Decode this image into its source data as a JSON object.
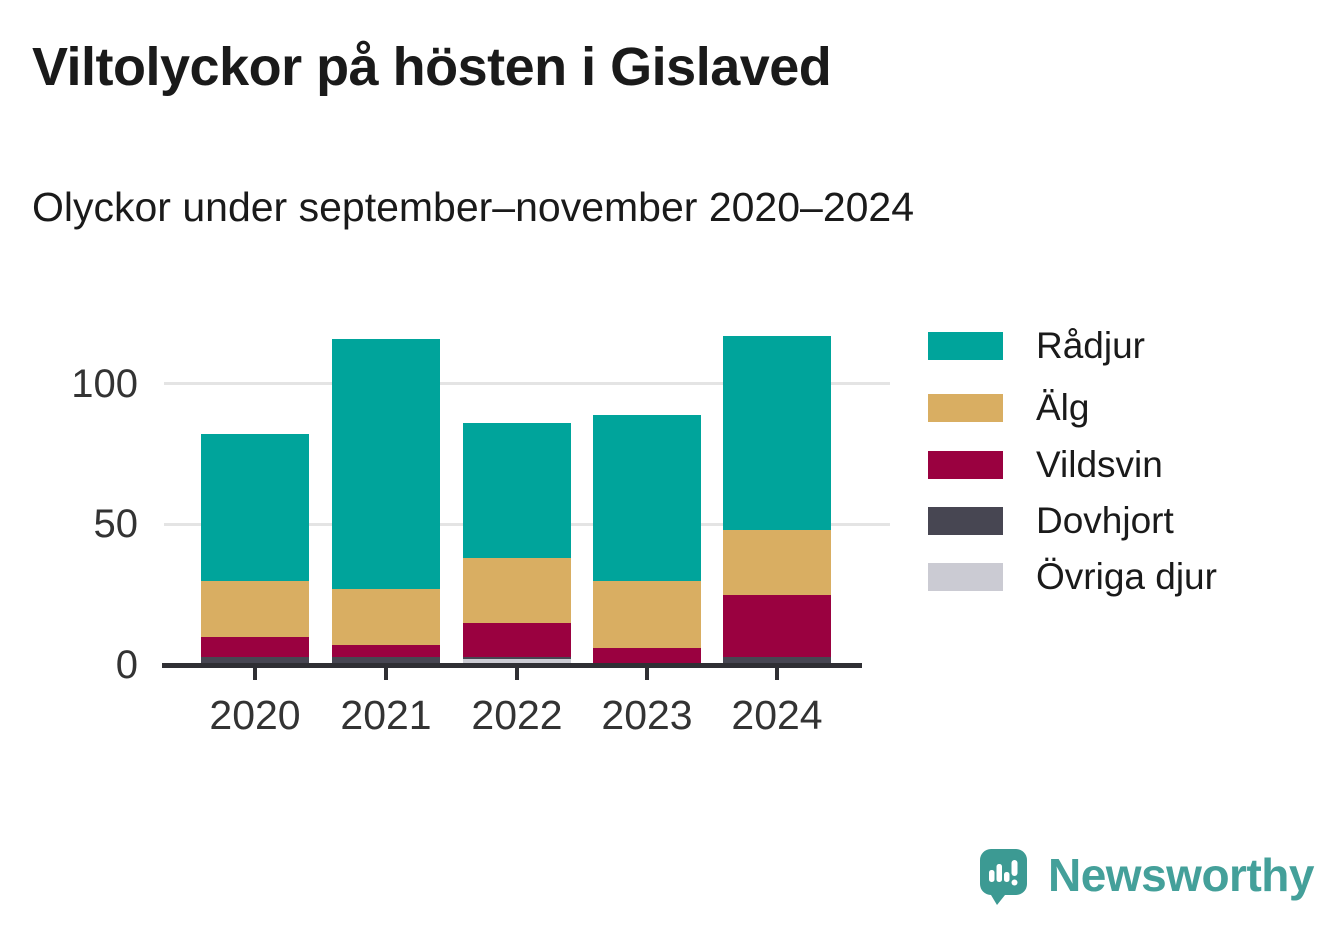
{
  "title": "Viltolyckor på hösten i Gislaved",
  "subtitle": "Olyckor under september–november 2020–2024",
  "branding": {
    "logo_text": "Newsworthy",
    "logo_icon": "speech-bubble-bar-chart-icon",
    "bubble_color": "#3c9a93",
    "text_color": "#44a09a"
  },
  "chart_data": {
    "type": "bar",
    "stacked": true,
    "title": "Viltolyckor på hösten i Gislaved",
    "subtitle": "Olyckor under september–november 2020–2024",
    "categories": [
      "2020",
      "2021",
      "2022",
      "2023",
      "2024"
    ],
    "series": [
      {
        "name": "Rådjur",
        "color": "#00a49b",
        "values": [
          52,
          89,
          48,
          59,
          69
        ]
      },
      {
        "name": "Älg",
        "color": "#d9ae62",
        "values": [
          20,
          20,
          23,
          24,
          23
        ]
      },
      {
        "name": "Vildsvin",
        "color": "#9a0140",
        "values": [
          7,
          4,
          12,
          6,
          22
        ]
      },
      {
        "name": "Dovhjort",
        "color": "#474652",
        "values": [
          3,
          3,
          1,
          0,
          3
        ]
      },
      {
        "name": "Övriga djur",
        "color": "#cbcbd3",
        "values": [
          0,
          0,
          2,
          0,
          0
        ]
      }
    ],
    "totals": [
      82,
      116,
      86,
      89,
      117
    ],
    "xlabel": "",
    "ylabel": "",
    "yticks": [
      0,
      50,
      100
    ],
    "ylim": [
      0,
      120
    ],
    "grid": true,
    "legend_position": "right",
    "legend_order_top_to_bottom": [
      "Rådjur",
      "Älg",
      "Vildsvin",
      "Dovhjort",
      "Övriga djur"
    ],
    "axis_color": "#2f2f34",
    "grid_color": "#e4e4e4",
    "tick_label_color": "#333333"
  }
}
